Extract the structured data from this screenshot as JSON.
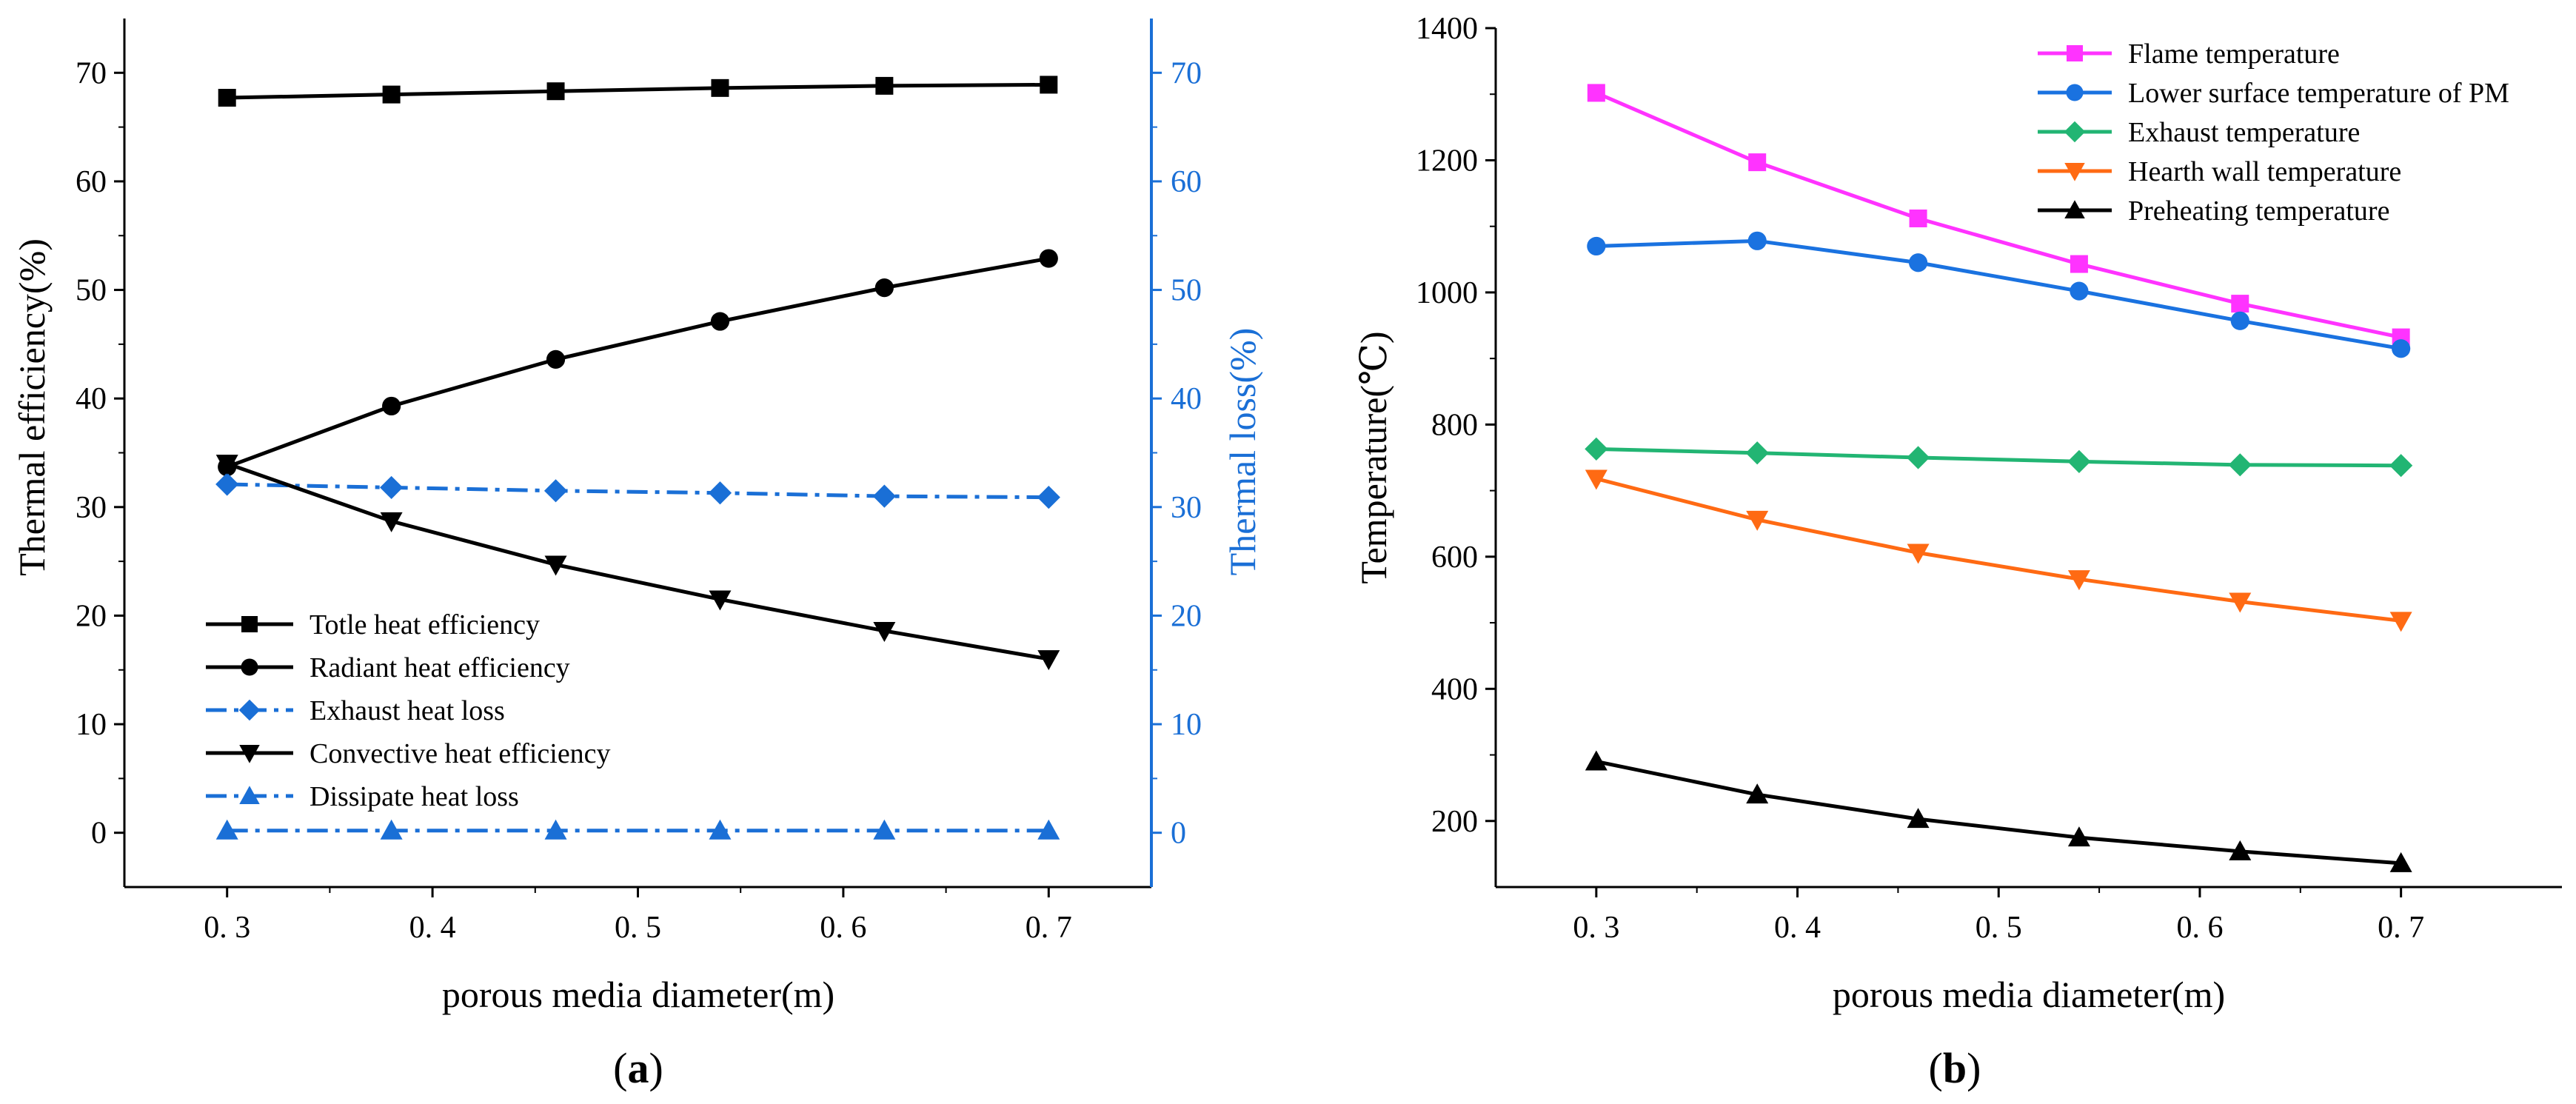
{
  "chart_data": [
    {
      "panel": "a",
      "panel_label_open": "(",
      "panel_label_letter": "a",
      "panel_label_close": ")",
      "type": "line",
      "xlabel": "porous media diameter(m)",
      "ylabel": "Thermal efficiency(%)",
      "y2label": "Thermal loss(%)",
      "xlim": [
        0.25,
        0.75
      ],
      "ylim": [
        -5,
        75
      ],
      "y2lim": [
        -5,
        75
      ],
      "xticks": [
        0.3,
        0.4,
        0.5,
        0.6,
        0.7
      ],
      "xtick_labels": [
        "0. 3",
        "0. 4",
        "0. 5",
        "0. 6",
        "0. 7"
      ],
      "yticks": [
        0,
        10,
        20,
        30,
        40,
        50,
        60,
        70
      ],
      "ytick_labels": [
        "0",
        "10",
        "20",
        "30",
        "40",
        "50",
        "60",
        "70"
      ],
      "y2ticks": [
        0,
        10,
        20,
        30,
        40,
        50,
        60,
        70
      ],
      "y2tick_labels": [
        "0",
        "10",
        "20",
        "30",
        "40",
        "50",
        "60",
        "70"
      ],
      "x": [
        0.3,
        0.38,
        0.46,
        0.54,
        0.62,
        0.7
      ],
      "legend_position": "lower-left",
      "series": [
        {
          "name": "Totle heat efficiency",
          "values": [
            67.7,
            68.0,
            68.3,
            68.6,
            68.8,
            68.9
          ],
          "color": "#000000",
          "marker": "square",
          "dash": "solid",
          "axis": "left"
        },
        {
          "name": "Radiant heat efficiency",
          "values": [
            33.7,
            39.3,
            43.6,
            47.1,
            50.2,
            52.9
          ],
          "color": "#000000",
          "marker": "circle",
          "dash": "solid",
          "axis": "left"
        },
        {
          "name": "Exhaust heat loss",
          "values": [
            32.1,
            31.8,
            31.5,
            31.3,
            31.0,
            30.9
          ],
          "color": "#1a6fd6",
          "marker": "diamond",
          "dash": "dashdot",
          "axis": "right"
        },
        {
          "name": "Convective heat efficiency",
          "values": [
            34.0,
            28.7,
            24.7,
            21.5,
            18.6,
            16.0
          ],
          "color": "#000000",
          "marker": "triangle-down",
          "dash": "solid",
          "axis": "left"
        },
        {
          "name": "Dissipate heat loss",
          "values": [
            0.2,
            0.2,
            0.2,
            0.2,
            0.2,
            0.2
          ],
          "color": "#1a6fd6",
          "marker": "triangle-up",
          "dash": "dashdot",
          "axis": "right"
        }
      ]
    },
    {
      "panel": "b",
      "panel_label_open": "(",
      "panel_label_letter": "b",
      "panel_label_close": ")",
      "type": "line",
      "xlabel": "porous media diameter(m)",
      "ylabel": "Temperature(℃)",
      "xlim": [
        0.25,
        0.78
      ],
      "ylim": [
        100,
        1400
      ],
      "xticks": [
        0.3,
        0.4,
        0.5,
        0.6,
        0.7
      ],
      "xtick_labels": [
        "0. 3",
        "0. 4",
        "0. 5",
        "0. 6",
        "0. 7"
      ],
      "yticks": [
        200,
        400,
        600,
        800,
        1000,
        1200,
        1400
      ],
      "ytick_labels": [
        "200",
        "400",
        "600",
        "800",
        "1000",
        "1200",
        "1400"
      ],
      "x": [
        0.3,
        0.38,
        0.46,
        0.54,
        0.62,
        0.7
      ],
      "legend_position": "top-right",
      "series": [
        {
          "name": "Flame temperature",
          "values": [
            1302,
            1197,
            1112,
            1043,
            983,
            932
          ],
          "color": "#ff33ff",
          "marker": "square"
        },
        {
          "name": "Lower surface temperature of PM",
          "values": [
            1070,
            1078,
            1045,
            1002,
            957,
            915
          ],
          "color": "#1a72e0",
          "marker": "circle"
        },
        {
          "name": "Exhaust temperature",
          "values": [
            763,
            757,
            750,
            744,
            739,
            738
          ],
          "color": "#22b573",
          "marker": "diamond"
        },
        {
          "name": "Hearth wall temperature",
          "values": [
            718,
            656,
            606,
            566,
            532,
            503
          ],
          "color": "#ff6a13",
          "marker": "triangle-down"
        },
        {
          "name": "Preheating temperature",
          "values": [
            290,
            240,
            203,
            175,
            154,
            136
          ],
          "color": "#000000",
          "marker": "triangle-up"
        }
      ]
    }
  ]
}
